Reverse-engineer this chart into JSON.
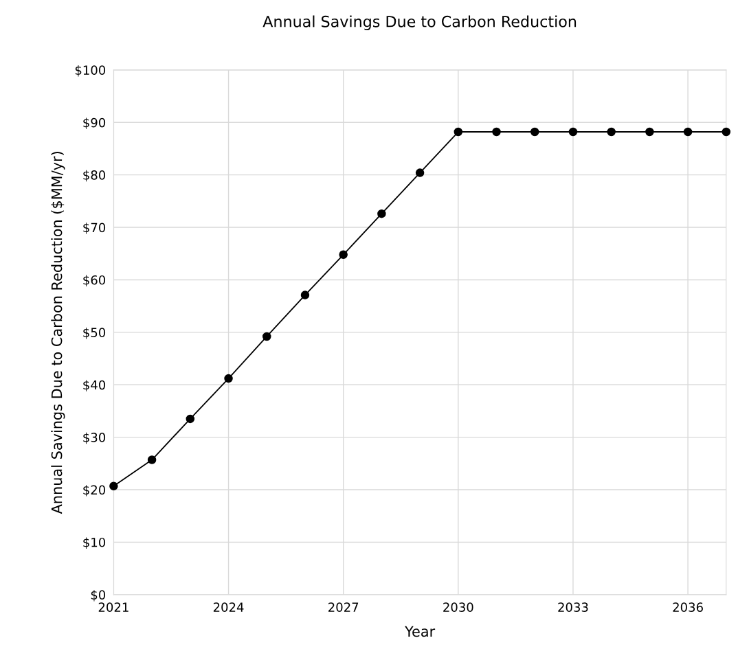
{
  "chart_data": {
    "type": "line",
    "title": "Annual Savings Due to Carbon Reduction",
    "xlabel": "Year",
    "ylabel": "Annual Savings Due to Carbon Reduction ($MM/yr)",
    "x": [
      2021,
      2022,
      2023,
      2024,
      2025,
      2026,
      2027,
      2028,
      2029,
      2030,
      2031,
      2032,
      2033,
      2034,
      2035,
      2036,
      2037
    ],
    "series": [
      {
        "color": "#000000",
        "values": [
          20.7,
          25.7,
          33.5,
          41.2,
          49.2,
          57.1,
          64.8,
          72.6,
          80.4,
          88.2,
          88.2,
          88.2,
          88.2,
          88.2,
          88.2,
          88.2,
          88.2
        ]
      }
    ],
    "xlim": [
      2021,
      2037
    ],
    "xticks": [
      2021,
      2024,
      2027,
      2030,
      2033,
      2036
    ],
    "ylim": [
      0,
      100
    ],
    "yticks": [
      {
        "value": 0,
        "label": "$0"
      },
      {
        "value": 10,
        "label": "$10"
      },
      {
        "value": 20,
        "label": "$20"
      },
      {
        "value": 30,
        "label": "$30"
      },
      {
        "value": 40,
        "label": "$40"
      },
      {
        "value": 50,
        "label": "$50"
      },
      {
        "value": 60,
        "label": "$60"
      },
      {
        "value": 70,
        "label": "$70"
      },
      {
        "value": 80,
        "label": "$80"
      },
      {
        "value": 90,
        "label": "$90"
      },
      {
        "value": 100,
        "label": "$100"
      }
    ],
    "grid": true,
    "marker": "circle",
    "line_style": "solid",
    "legend": false
  }
}
